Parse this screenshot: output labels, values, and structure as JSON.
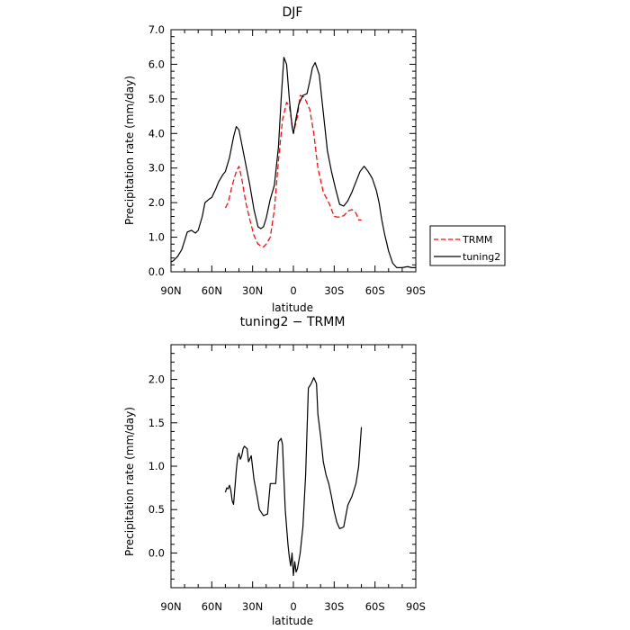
{
  "chart_data": [
    {
      "type": "line",
      "title": "DJF",
      "xlabel": "latitude",
      "ylabel": "Precipitation rate (mm/day)",
      "xlim": [
        -90,
        90
      ],
      "ylim": [
        0,
        7
      ],
      "xticks": [
        -90,
        -60,
        -30,
        0,
        30,
        60,
        90
      ],
      "xtick_labels": [
        "90N",
        "60N",
        "30N",
        "0",
        "30S",
        "60S",
        "90S"
      ],
      "yticks": [
        0,
        1,
        2,
        3,
        4,
        5,
        6,
        7
      ],
      "ytick_labels": [
        "0.0",
        "1.0",
        "2.0",
        "3.0",
        "4.0",
        "5.0",
        "6.0",
        "7.0"
      ],
      "legend_position": "outside-right",
      "series": [
        {
          "name": "TRMM",
          "color": "#ff0000",
          "style": "dashed",
          "x": [
            -50,
            -48,
            -45,
            -42,
            -40,
            -38,
            -35,
            -32,
            -29,
            -26,
            -24,
            -22,
            -20,
            -17,
            -14,
            -11,
            -8,
            -5,
            -3,
            0,
            3,
            5,
            8,
            12,
            15,
            18,
            22,
            26,
            30,
            33,
            37,
            40,
            43,
            46,
            48,
            50
          ],
          "y": [
            1.85,
            2.0,
            2.5,
            2.9,
            3.05,
            2.7,
            2.0,
            1.5,
            1.05,
            0.8,
            0.75,
            0.72,
            0.8,
            1.0,
            1.8,
            3.2,
            4.4,
            4.9,
            4.8,
            4.0,
            4.5,
            5.1,
            5.05,
            4.7,
            4.0,
            3.0,
            2.3,
            2.0,
            1.6,
            1.58,
            1.62,
            1.75,
            1.8,
            1.7,
            1.5,
            1.5
          ]
        },
        {
          "name": "tuning2",
          "color": "#000000",
          "style": "solid",
          "x": [
            -90,
            -88,
            -85,
            -82,
            -80,
            -78,
            -75,
            -72,
            -70,
            -67,
            -65,
            -62,
            -60,
            -57,
            -55,
            -52,
            -50,
            -47,
            -44,
            -42,
            -40,
            -38,
            -35,
            -32,
            -29,
            -26,
            -24,
            -22,
            -20,
            -17,
            -14,
            -11,
            -9,
            -7,
            -5,
            -3,
            -1,
            0,
            2,
            4,
            7,
            10,
            12,
            14,
            16,
            19,
            22,
            25,
            28,
            31,
            34,
            37,
            40,
            43,
            46,
            49,
            52,
            55,
            58,
            61,
            63,
            65,
            67,
            70,
            73,
            76,
            80,
            84,
            87,
            90
          ],
          "y": [
            0.28,
            0.33,
            0.45,
            0.65,
            0.9,
            1.15,
            1.2,
            1.12,
            1.2,
            1.6,
            2.0,
            2.1,
            2.15,
            2.4,
            2.6,
            2.8,
            2.9,
            3.3,
            3.9,
            4.2,
            4.1,
            3.7,
            3.1,
            2.5,
            1.8,
            1.3,
            1.25,
            1.3,
            1.55,
            2.1,
            2.5,
            3.6,
            5.0,
            6.2,
            6.0,
            5.0,
            4.2,
            4.0,
            4.45,
            4.85,
            5.1,
            5.15,
            5.5,
            5.9,
            6.05,
            5.7,
            4.6,
            3.5,
            2.9,
            2.4,
            1.95,
            1.9,
            2.05,
            2.3,
            2.6,
            2.9,
            3.05,
            2.9,
            2.7,
            2.35,
            2.0,
            1.5,
            1.1,
            0.6,
            0.25,
            0.12,
            0.12,
            0.15,
            0.12,
            0.12
          ]
        }
      ]
    },
    {
      "type": "line",
      "title": "tuning2 − TRMM",
      "xlabel": "latitude",
      "ylabel": "Precipitation rate (mm/day)",
      "xlim": [
        -90,
        90
      ],
      "ylim": [
        -0.4,
        2.4
      ],
      "xticks": [
        -90,
        -60,
        -30,
        0,
        30,
        60,
        90
      ],
      "xtick_labels": [
        "90N",
        "60N",
        "30N",
        "0",
        "30S",
        "60S",
        "90S"
      ],
      "yticks": [
        0,
        0.5,
        1.0,
        1.5,
        2.0
      ],
      "ytick_labels": [
        "0.0",
        "0.5",
        "1.0",
        "1.5",
        "2.0"
      ],
      "series": [
        {
          "color": "#000000",
          "style": "solid",
          "x": [
            -50,
            -49,
            -48,
            -47,
            -46,
            -45,
            -44,
            -43,
            -42,
            -41,
            -40,
            -39,
            -38,
            -37,
            -36,
            -34,
            -33,
            -31,
            -29,
            -27,
            -25,
            -22,
            -19,
            -17,
            -14,
            -13,
            -11,
            -9,
            -8,
            -6,
            -4,
            -3,
            -2,
            -1,
            0,
            1,
            2,
            3,
            5,
            7,
            9,
            11,
            13,
            15,
            17,
            18,
            20,
            22,
            24,
            26,
            28,
            30,
            32,
            34,
            37,
            40,
            43,
            46,
            48,
            50
          ],
          "y": [
            0.7,
            0.75,
            0.74,
            0.78,
            0.72,
            0.6,
            0.56,
            0.75,
            0.95,
            1.1,
            1.15,
            1.08,
            1.12,
            1.2,
            1.23,
            1.2,
            1.05,
            1.12,
            0.85,
            0.68,
            0.5,
            0.43,
            0.45,
            0.8,
            0.8,
            0.8,
            1.28,
            1.32,
            1.25,
            0.5,
            0.1,
            -0.05,
            -0.15,
            0.0,
            -0.26,
            -0.1,
            -0.22,
            -0.18,
            0.0,
            0.3,
            0.9,
            1.9,
            1.95,
            2.02,
            1.95,
            1.6,
            1.35,
            1.05,
            0.9,
            0.8,
            0.65,
            0.48,
            0.35,
            0.28,
            0.3,
            0.55,
            0.65,
            0.8,
            1.0,
            1.45
          ]
        }
      ]
    }
  ]
}
